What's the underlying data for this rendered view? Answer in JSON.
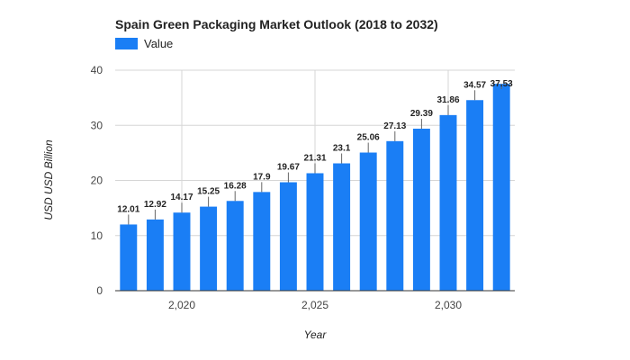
{
  "chart_data": {
    "type": "bar",
    "title": "Spain Green Packaging Market Outlook (2018 to 2032)",
    "xlabel": "Year",
    "ylabel": "USD USD Billion",
    "legend": {
      "position": "top-left",
      "entries": [
        "Value"
      ]
    },
    "bar_color": "#1a7ef5",
    "grid": true,
    "ylim": [
      0,
      40
    ],
    "yticks": [
      0,
      10,
      20,
      30,
      40
    ],
    "xticks": [
      {
        "value": 2020,
        "label": "2,020"
      },
      {
        "value": 2025,
        "label": "2,025"
      },
      {
        "value": 2030,
        "label": "2,030"
      }
    ],
    "series": [
      {
        "name": "Value",
        "x": [
          2018,
          2019,
          2020,
          2021,
          2022,
          2023,
          2024,
          2025,
          2026,
          2027,
          2028,
          2029,
          2030,
          2031,
          2032
        ],
        "values": [
          12.01,
          12.92,
          14.17,
          15.25,
          16.28,
          17.9,
          19.67,
          21.31,
          23.1,
          25.06,
          27.13,
          29.39,
          31.86,
          34.57,
          37.53
        ],
        "labels": [
          "12.01",
          "12.92",
          "14.17",
          "15.25",
          "16.28",
          "17.9",
          "19.67",
          "21.31",
          "23.1",
          "25.06",
          "27.13",
          "29.39",
          "31.86",
          "34.57",
          "37.53"
        ]
      }
    ]
  }
}
